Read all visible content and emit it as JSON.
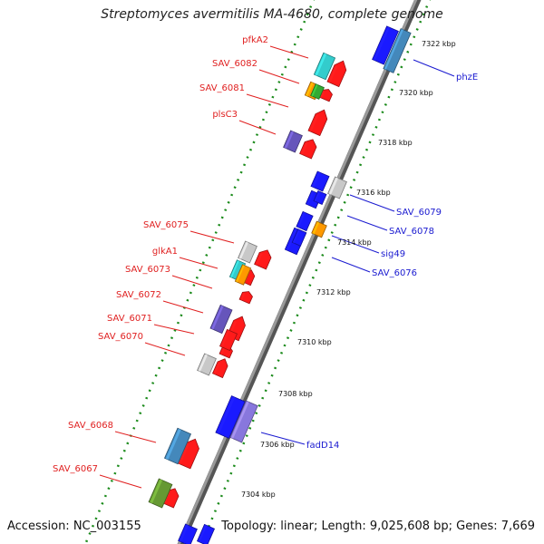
{
  "title": "Streptomyces avermitilis MA-4680, complete genome",
  "footer": {
    "accession": "Accession: NC_003155",
    "stats": "Topology: linear; Length: 9,025,608 bp; Genes: 7,669"
  },
  "colors": {
    "red": "#ff1a1a",
    "blue": "#1a1aff",
    "cyan": "#33cccc",
    "orange": "#ff9900",
    "green": "#33aa33",
    "purple": "#6655bb",
    "lightpurple": "#8877dd",
    "gray": "#c8c8c8",
    "steelblue": "#4488bb",
    "olive": "#669933",
    "label_red": "#e02020",
    "label_blue": "#1a1ad0",
    "tick_green": "#1a8a1a"
  },
  "kbp_ticks": [
    "7322 kbp",
    "7320 kbp",
    "7318 kbp",
    "7316 kbp",
    "7314 kbp",
    "7312 kbp",
    "7310 kbp",
    "7308 kbp",
    "7306 kbp",
    "7304 kbp"
  ],
  "genes_left": [
    {
      "name": "pfkA2",
      "color": "cyan"
    },
    {
      "name": "SAV_6082",
      "color": "orange"
    },
    {
      "name": "SAV_6081",
      "color": "green"
    },
    {
      "name": "plsC3",
      "color": "purple"
    },
    {
      "name": "SAV_6075",
      "color": "gray"
    },
    {
      "name": "glkA1",
      "color": "cyan"
    },
    {
      "name": "SAV_6073",
      "color": "orange"
    },
    {
      "name": "SAV_6072",
      "color": "purple"
    },
    {
      "name": "SAV_6071",
      "color": "red"
    },
    {
      "name": "SAV_6070",
      "color": "gray"
    },
    {
      "name": "SAV_6068",
      "color": "steelblue"
    },
    {
      "name": "SAV_6067",
      "color": "olive"
    }
  ],
  "genes_right": [
    {
      "name": "phzE",
      "color": "steelblue"
    },
    {
      "name": "SAV_6079",
      "color": "gray"
    },
    {
      "name": "SAV_6078",
      "color": "blue"
    },
    {
      "name": "sig49",
      "color": "orange"
    },
    {
      "name": "SAV_6076",
      "color": "blue"
    },
    {
      "name": "fadD14",
      "color": "lightpurple"
    }
  ]
}
